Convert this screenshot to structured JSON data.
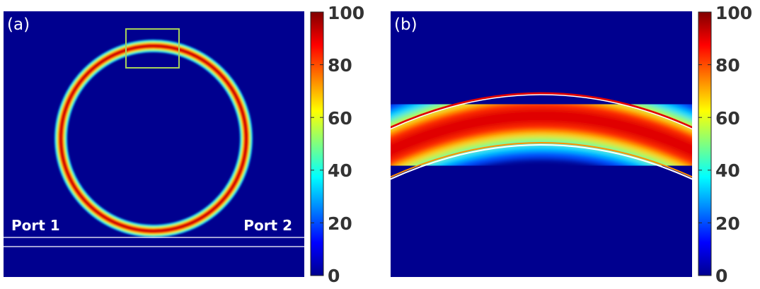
{
  "panels": [
    {
      "label": "(a)",
      "port_left": "Port 1",
      "port_right": "Port 2"
    },
    {
      "label": "(b)"
    }
  ],
  "colorbar": {
    "colormap": "jet",
    "ticks": [
      "100",
      "80",
      "60",
      "40",
      "20",
      "0"
    ],
    "range": [
      0,
      100
    ]
  },
  "colors": {
    "background": "#00008f",
    "ring_peak": "#b00000",
    "inset_box": "#a6d25a",
    "waveguide": "#ffffff"
  }
}
